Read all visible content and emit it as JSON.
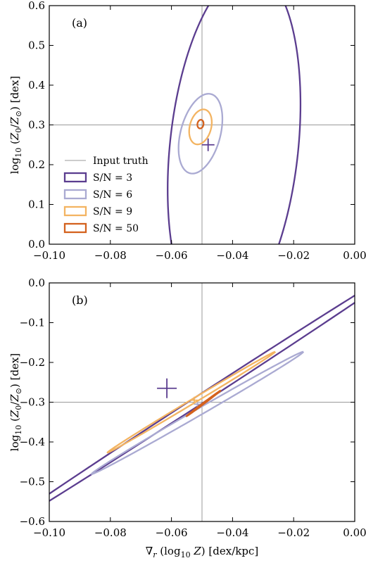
{
  "colors": {
    "truth": "#9a9a9a",
    "sn3": "#5b3d8f",
    "sn6": "#aaaad2",
    "sn9": "#f3b462",
    "sn50": "#d4621e"
  },
  "legend": {
    "truth_label": "Input truth",
    "entries": [
      {
        "label": "S/N = 3",
        "color_key": "sn3"
      },
      {
        "label": "S/N = 6",
        "color_key": "sn6"
      },
      {
        "label": "S/N = 9",
        "color_key": "sn9"
      },
      {
        "label": "S/N = 50",
        "color_key": "sn50"
      }
    ]
  },
  "xlabel": "∇r (log10 Z) [dex/kpc]",
  "ylabel": "log10 (Z0/Z⊙) [dex]",
  "chart_data": [
    {
      "type": "scatter",
      "panel_label": "(a)",
      "xlim": [
        -0.1,
        0.0
      ],
      "ylim": [
        0.0,
        0.6
      ],
      "xticks": [
        "−0.10",
        "−0.08",
        "−0.06",
        "−0.04",
        "−0.02",
        "0.00"
      ],
      "yticks": [
        "0.0",
        "0.1",
        "0.2",
        "0.3",
        "0.4",
        "0.5",
        "0.6"
      ],
      "truth": {
        "x": -0.05,
        "y": 0.3
      },
      "series": [
        {
          "name": "S/N = 3",
          "color_key": "sn3",
          "ellipse": {
            "cx": -0.0395,
            "cy": 0.245,
            "rx": 0.021,
            "ry": 0.445,
            "tilt_deg": -6
          },
          "marker": {
            "x": -0.048,
            "y": 0.25,
            "size": "medium"
          }
        },
        {
          "name": "S/N = 6",
          "color_key": "sn6",
          "ellipse": {
            "cx": -0.0505,
            "cy": 0.278,
            "rx": 0.0065,
            "ry": 0.103,
            "tilt_deg": -15
          }
        },
        {
          "name": "S/N = 9",
          "color_key": "sn9",
          "ellipse": {
            "cx": -0.0505,
            "cy": 0.295,
            "rx": 0.0035,
            "ry": 0.045,
            "tilt_deg": -15
          }
        },
        {
          "name": "S/N = 50",
          "color_key": "sn50",
          "ellipse": {
            "cx": -0.0505,
            "cy": 0.302,
            "rx": 0.001,
            "ry": 0.011,
            "tilt_deg": -10
          }
        }
      ]
    },
    {
      "type": "scatter",
      "panel_label": "(b)",
      "xlim": [
        -0.1,
        0.0
      ],
      "ylim": [
        -0.6,
        0.0
      ],
      "xticks": [
        "−0.10",
        "−0.08",
        "−0.06",
        "−0.04",
        "−0.02",
        "0.00"
      ],
      "yticks": [
        "0.0",
        "−0.1",
        "−0.2",
        "−0.3",
        "−0.4",
        "−0.5",
        "−0.6"
      ],
      "truth": {
        "x": -0.05,
        "y": -0.3
      },
      "series": [
        {
          "name": "S/N = 3",
          "color_key": "sn3",
          "ellipse": {
            "cx": -0.05,
            "cy": -0.29,
            "rx": 0.082,
            "ry": 0.011,
            "tilt_deg": 33
          },
          "marker": {
            "x": -0.0615,
            "y": -0.265,
            "size": "large"
          }
        },
        {
          "name": "S/N = 6",
          "color_key": "sn6",
          "ellipse": {
            "cx": -0.0515,
            "cy": -0.327,
            "rx": 0.04,
            "ry": 0.0085,
            "tilt_deg": 30
          },
          "marker": {
            "x": -0.0515,
            "y": -0.305,
            "size": "small"
          }
        },
        {
          "name": "S/N = 9",
          "color_key": "sn9",
          "ellipse": {
            "cx": -0.0535,
            "cy": -0.3,
            "rx": 0.032,
            "ry": 0.0055,
            "tilt_deg": 31
          },
          "marker": {
            "x": -0.0525,
            "y": -0.295,
            "size": "small"
          }
        },
        {
          "name": "S/N = 50",
          "color_key": "sn50",
          "ellipse": {
            "cx": -0.0495,
            "cy": -0.303,
            "rx": 0.007,
            "ry": 0.0015,
            "tilt_deg": 37
          }
        }
      ]
    }
  ]
}
